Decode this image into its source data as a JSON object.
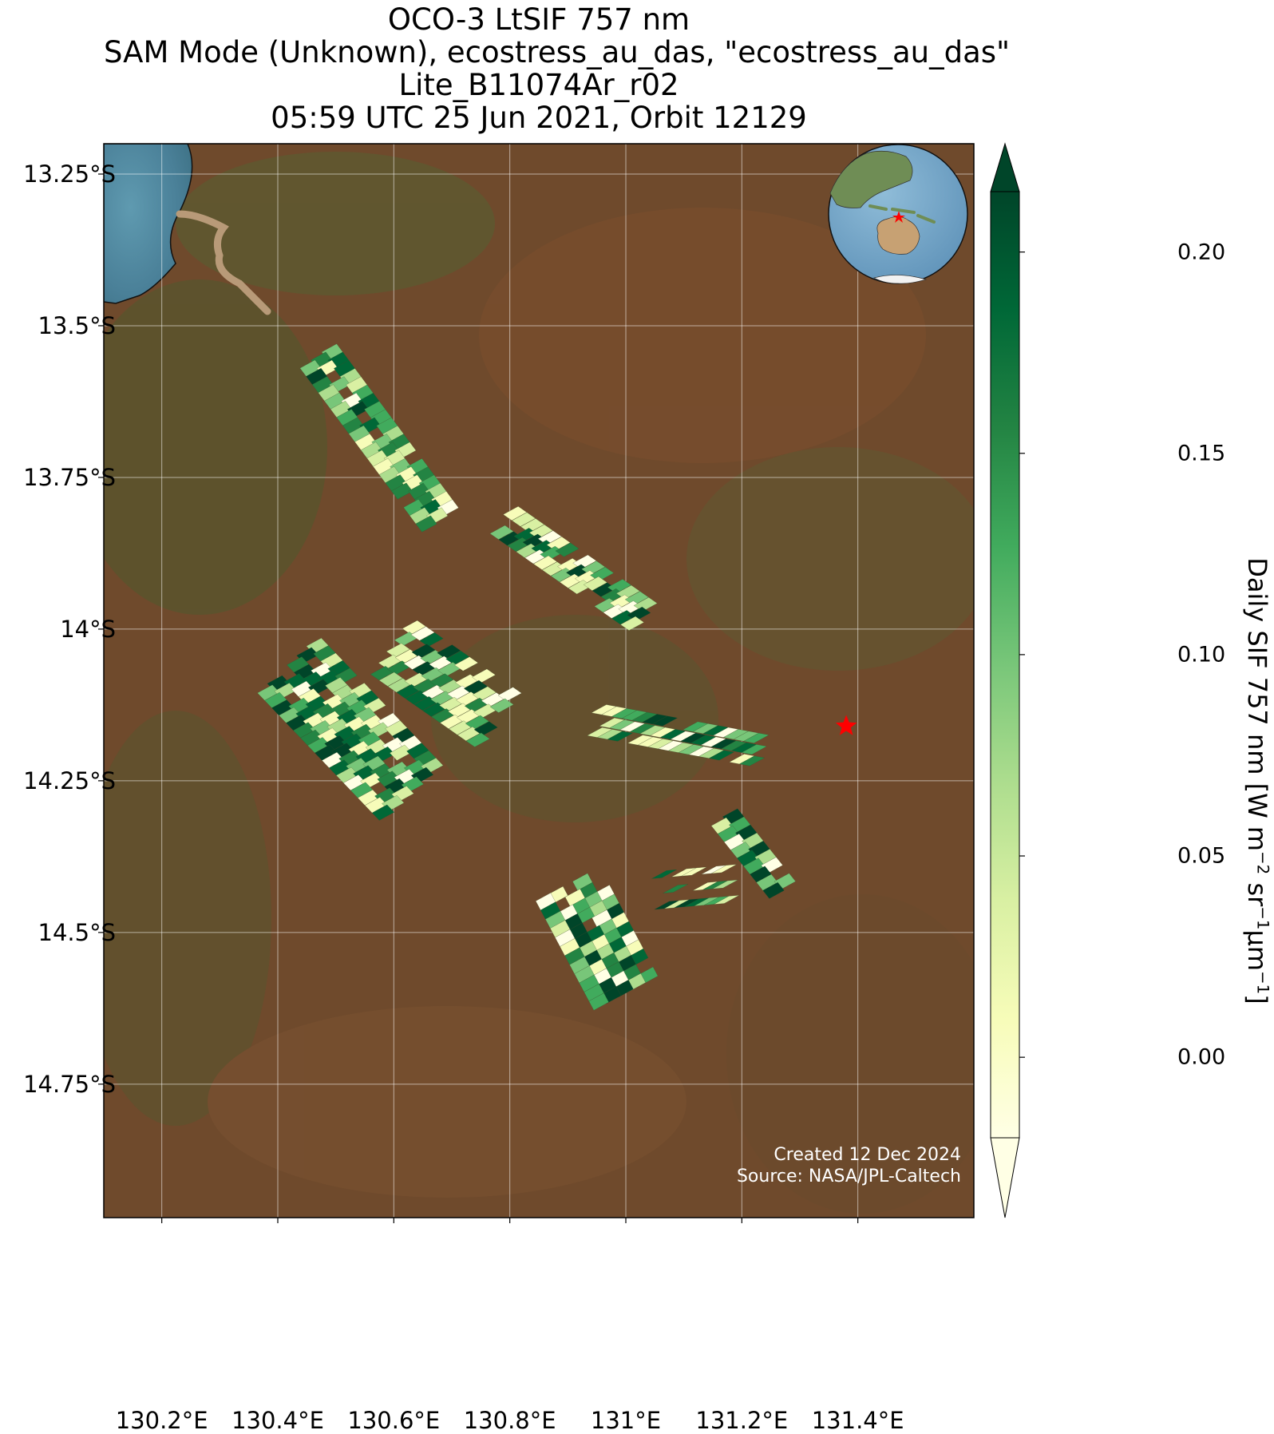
{
  "title": {
    "line1": "OCO-3 LtSIF 757 nm",
    "line2": "SAM Mode (Unknown), ecostress_au_das, \"ecostress_au_das\"",
    "line3": "Lite_B11074Ar_r02",
    "line4": "05:59 UTC 25 Jun 2021, Orbit 12129"
  },
  "axes": {
    "lat_ticks": [
      "13.25°S",
      "13.5°S",
      "13.75°S",
      "14°S",
      "14.25°S",
      "14.5°S",
      "14.75°S"
    ],
    "lon_ticks": [
      "130.2°E",
      "130.4°E",
      "130.6°E",
      "130.8°E",
      "131°E",
      "131.2°E",
      "131.4°E"
    ],
    "lat_values": [
      -13.25,
      -13.5,
      -13.75,
      -14.0,
      -14.25,
      -14.5,
      -14.75
    ],
    "lon_values": [
      130.2,
      130.4,
      130.6,
      130.8,
      131.0,
      131.2,
      131.4
    ],
    "lat_range": [
      -14.97,
      -13.2
    ],
    "lon_range": [
      130.1,
      131.6
    ],
    "grid": true
  },
  "colorbar": {
    "label_main": "Daily SIF 757 nm [W m",
    "label_exp1": "−2",
    "label_mid": " sr",
    "label_exp2": "−1",
    "label_unit": "μm",
    "label_exp3": "−1",
    "label_end": "]",
    "ticks": [
      "0.00",
      "0.05",
      "0.10",
      "0.15",
      "0.20"
    ],
    "tick_values": [
      0.0,
      0.05,
      0.1,
      0.15,
      0.2
    ],
    "range": [
      -0.02,
      0.215
    ],
    "extend": "both",
    "colormap": "YlGn",
    "colors": [
      "#ffffe5",
      "#f7fcb9",
      "#d9f0a3",
      "#addd8e",
      "#78c679",
      "#41ab5d",
      "#238443",
      "#006837",
      "#004529"
    ]
  },
  "credit": {
    "created": "Created 12 Dec 2024",
    "source": "Source: NASA/JPL-Caltech"
  },
  "target_marker": {
    "lon": 131.38,
    "lat": -14.16,
    "color": "#ff0000"
  },
  "inset_globe": {
    "region": "Australia / Maritime Continent",
    "marker_color": "#ff0000"
  },
  "swaths": [
    {
      "lon0": 130.47,
      "lat0": -13.55,
      "lon1": 130.68,
      "lat1": -13.82,
      "width": 0.07
    },
    {
      "lon0": 130.79,
      "lat0": -13.82,
      "lon1": 131.03,
      "lat1": -13.98,
      "width": 0.06
    },
    {
      "lon0": 130.42,
      "lat0": -14.06,
      "lon1": 130.63,
      "lat1": -14.27,
      "width": 0.14
    },
    {
      "lon0": 130.6,
      "lat0": -14.03,
      "lon1": 130.78,
      "lat1": -14.15,
      "width": 0.12
    },
    {
      "lon0": 130.95,
      "lat0": -14.15,
      "lon1": 131.23,
      "lat1": -14.2,
      "width": 0.06
    },
    {
      "lon0": 130.9,
      "lat0": -14.42,
      "lon1": 131.0,
      "lat1": -14.6,
      "width": 0.12
    },
    {
      "lon0": 131.06,
      "lat0": -14.43,
      "lon1": 131.18,
      "lat1": -14.42,
      "width": 0.08
    },
    {
      "lon0": 131.17,
      "lat0": -14.31,
      "lon1": 131.27,
      "lat1": -14.43,
      "width": 0.05
    }
  ]
}
